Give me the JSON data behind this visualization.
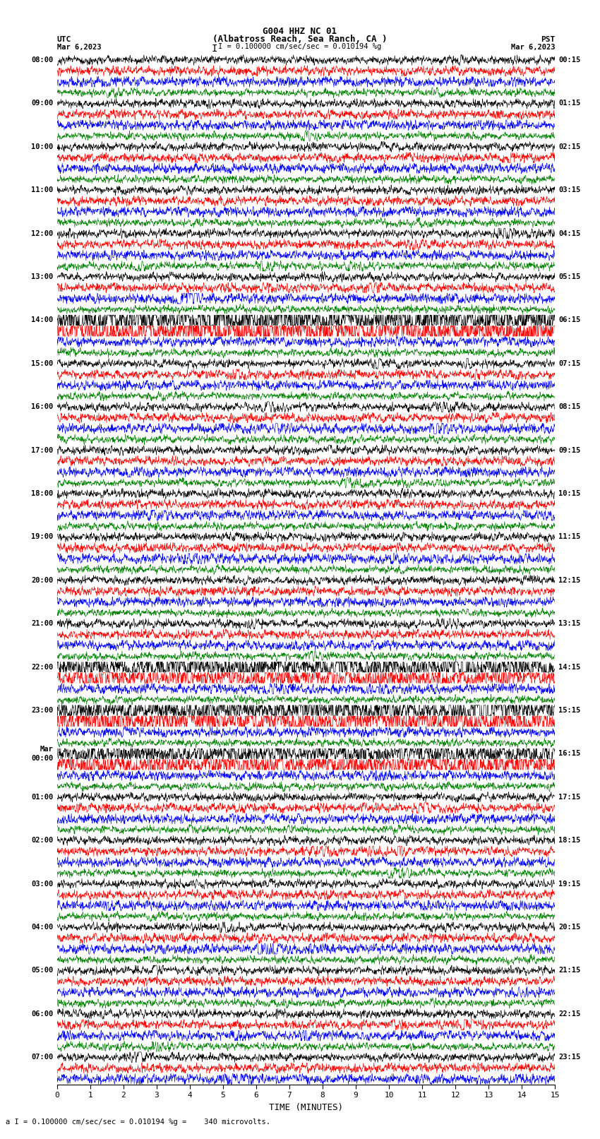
{
  "title_line1": "G004 HHZ NC 01",
  "title_line2": "(Albatross Reach, Sea Ranch, CA )",
  "scale_label": "I = 0.100000 cm/sec/sec = 0.010194 %g",
  "bottom_label": "a I = 0.100000 cm/sec/sec = 0.010194 %g =    340 microvolts.",
  "xlabel": "TIME (MINUTES)",
  "bg_color": "#ffffff",
  "trace_colors": [
    "black",
    "red",
    "blue",
    "green"
  ],
  "left_times": [
    "08:00",
    "",
    "",
    "",
    "09:00",
    "",
    "",
    "",
    "10:00",
    "",
    "",
    "",
    "11:00",
    "",
    "",
    "",
    "12:00",
    "",
    "",
    "",
    "13:00",
    "",
    "",
    "",
    "14:00",
    "",
    "",
    "",
    "15:00",
    "",
    "",
    "",
    "16:00",
    "",
    "",
    "",
    "17:00",
    "",
    "",
    "",
    "18:00",
    "",
    "",
    "",
    "19:00",
    "",
    "",
    "",
    "20:00",
    "",
    "",
    "",
    "21:00",
    "",
    "",
    "",
    "22:00",
    "",
    "",
    "",
    "23:00",
    "",
    "",
    "",
    "Mar\n00:00",
    "",
    "",
    "",
    "01:00",
    "",
    "",
    "",
    "02:00",
    "",
    "",
    "",
    "03:00",
    "",
    "",
    "",
    "04:00",
    "",
    "",
    "",
    "05:00",
    "",
    "",
    "",
    "06:00",
    "",
    "",
    "",
    "07:00",
    "",
    ""
  ],
  "right_times": [
    "00:15",
    "",
    "",
    "",
    "01:15",
    "",
    "",
    "",
    "02:15",
    "",
    "",
    "",
    "03:15",
    "",
    "",
    "",
    "04:15",
    "",
    "",
    "",
    "05:15",
    "",
    "",
    "",
    "06:15",
    "",
    "",
    "",
    "07:15",
    "",
    "",
    "",
    "08:15",
    "",
    "",
    "",
    "09:15",
    "",
    "",
    "",
    "10:15",
    "",
    "",
    "",
    "11:15",
    "",
    "",
    "",
    "12:15",
    "",
    "",
    "",
    "13:15",
    "",
    "",
    "",
    "14:15",
    "",
    "",
    "",
    "15:15",
    "",
    "",
    "",
    "16:15",
    "",
    "",
    "",
    "17:15",
    "",
    "",
    "",
    "18:15",
    "",
    "",
    "",
    "19:15",
    "",
    "",
    "",
    "20:15",
    "",
    "",
    "",
    "21:15",
    "",
    "",
    "",
    "22:15",
    "",
    "",
    "",
    "23:15",
    "",
    ""
  ],
  "num_rows": 95,
  "minutes": 15,
  "samples_per_row": 1800
}
